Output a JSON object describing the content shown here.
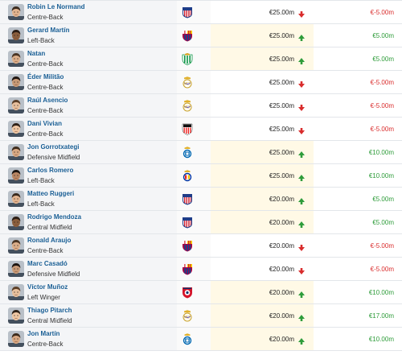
{
  "rows": [
    {
      "name": "Robin Le Normand",
      "position": "Centre-Back",
      "club_icon": "atletico-madrid-crest-icon",
      "market_value": "€25.00m",
      "trend": "down",
      "change": "€-5.00m"
    },
    {
      "name": "Gerard Martín",
      "position": "Left-Back",
      "club_icon": "fc-barcelona-crest-icon",
      "market_value": "€25.00m",
      "trend": "up",
      "change": "€5.00m"
    },
    {
      "name": "Natan",
      "position": "Centre-Back",
      "club_icon": "real-betis-crest-icon",
      "market_value": "€25.00m",
      "trend": "up",
      "change": "€5.00m"
    },
    {
      "name": "Éder Militão",
      "position": "Centre-Back",
      "club_icon": "real-madrid-crest-icon",
      "market_value": "€25.00m",
      "trend": "down",
      "change": "€-5.00m"
    },
    {
      "name": "Raúl Asencio",
      "position": "Centre-Back",
      "club_icon": "real-madrid-crest-icon",
      "market_value": "€25.00m",
      "trend": "down",
      "change": "€-5.00m"
    },
    {
      "name": "Dani Vivian",
      "position": "Centre-Back",
      "club_icon": "athletic-bilbao-crest-icon",
      "market_value": "€25.00m",
      "trend": "down",
      "change": "€-5.00m"
    },
    {
      "name": "Jon Gorrotxategi",
      "position": "Defensive Midfield",
      "club_icon": "real-sociedad-crest-icon",
      "market_value": "€25.00m",
      "trend": "up",
      "change": "€10.00m"
    },
    {
      "name": "Carlos Romero",
      "position": "Left-Back",
      "club_icon": "espanyol-crest-icon",
      "market_value": "€25.00m",
      "trend": "up",
      "change": "€10.00m"
    },
    {
      "name": "Matteo Ruggeri",
      "position": "Left-Back",
      "club_icon": "atletico-madrid-crest-icon",
      "market_value": "€20.00m",
      "trend": "up",
      "change": "€5.00m"
    },
    {
      "name": "Rodrigo Mendoza",
      "position": "Central Midfield",
      "club_icon": "atletico-madrid-crest-icon",
      "market_value": "€20.00m",
      "trend": "up",
      "change": "€5.00m"
    },
    {
      "name": "Ronald Araujo",
      "position": "Centre-Back",
      "club_icon": "fc-barcelona-crest-icon",
      "market_value": "€20.00m",
      "trend": "down",
      "change": "€-5.00m"
    },
    {
      "name": "Marc Casadó",
      "position": "Defensive Midfield",
      "club_icon": "fc-barcelona-crest-icon",
      "market_value": "€20.00m",
      "trend": "down",
      "change": "€-5.00m"
    },
    {
      "name": "Víctor Muñoz",
      "position": "Left Winger",
      "club_icon": "osasuna-crest-icon",
      "market_value": "€20.00m",
      "trend": "up",
      "change": "€10.00m"
    },
    {
      "name": "Thiago Pitarch",
      "position": "Central Midfield",
      "club_icon": "real-madrid-crest-icon",
      "market_value": "€20.00m",
      "trend": "up",
      "change": "€17.00m"
    },
    {
      "name": "Jon Martín",
      "position": "Centre-Back",
      "club_icon": "real-sociedad-crest-icon",
      "market_value": "€20.00m",
      "trend": "up",
      "change": "€10.00m"
    }
  ],
  "colors": {
    "name_link": "#1a5f95",
    "positive": "#2e9c3a",
    "negative": "#d92c2c",
    "highlight": "#fff9e6"
  }
}
